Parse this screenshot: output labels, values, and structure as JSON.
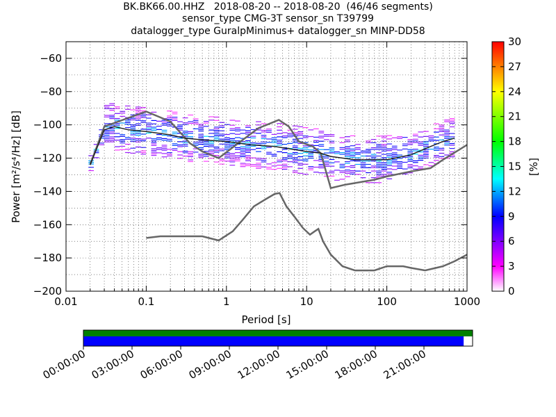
{
  "chart_data": {
    "type": "heatmap",
    "title_lines": [
      "BK.BK66.00.HHZ   2018-08-20 -- 2018-08-20  (46/46 segments)",
      "sensor_type CMG-3T sensor_sn T39799",
      "datalogger_type GuralpMinimus+ datalogger_sn MINP-DD58"
    ],
    "xlabel": "Period [s]",
    "ylabel": "Power [m²/s⁴/Hz] [dB]",
    "x_scale": "log",
    "xlim": [
      0.01,
      1000
    ],
    "ylim": [
      -200,
      -50
    ],
    "x_ticks": [
      {
        "value": 0.01,
        "label": "0.01"
      },
      {
        "value": 0.1,
        "label": "0.1"
      },
      {
        "value": 1,
        "label": "1"
      },
      {
        "value": 10,
        "label": "10"
      },
      {
        "value": 100,
        "label": "100"
      },
      {
        "value": 1000,
        "label": "1000"
      }
    ],
    "y_ticks": [
      -200,
      -180,
      -160,
      -140,
      -120,
      -100,
      -80,
      -60
    ],
    "grid": true,
    "colorbar": {
      "label": "[%]",
      "range": [
        0,
        30
      ],
      "ticks": [
        0,
        3,
        6,
        9,
        12,
        15,
        18,
        21,
        24,
        27,
        30
      ]
    },
    "series": [
      {
        "name": "",
        "color": "#666666",
        "points": [
          [
            0.1,
            -168
          ],
          [
            0.15,
            -167
          ],
          [
            0.3,
            -167
          ],
          [
            0.5,
            -167
          ],
          [
            0.8,
            -169.5
          ],
          [
            1.2,
            -164
          ],
          [
            1.6,
            -157
          ],
          [
            2.2,
            -149
          ],
          [
            3,
            -145
          ],
          [
            4,
            -141.5
          ],
          [
            4.6,
            -141
          ],
          [
            5.6,
            -149
          ],
          [
            7,
            -155
          ],
          [
            9,
            -162
          ],
          [
            11,
            -166
          ],
          [
            12.6,
            -164
          ],
          [
            14,
            -162.5
          ],
          [
            16,
            -170
          ],
          [
            20,
            -178
          ],
          [
            28,
            -185
          ],
          [
            40,
            -187.5
          ],
          [
            70,
            -187.5
          ],
          [
            100,
            -185
          ],
          [
            160,
            -185
          ],
          [
            200,
            -186
          ],
          [
            300,
            -187.5
          ],
          [
            500,
            -185
          ],
          [
            700,
            -182
          ],
          [
            1000,
            -178
          ]
        ]
      },
      {
        "name": "",
        "color": "#666666",
        "points": [
          [
            0.02,
            -124
          ],
          [
            0.03,
            -101
          ],
          [
            0.1,
            -92
          ],
          [
            0.2,
            -98
          ],
          [
            0.35,
            -111
          ],
          [
            0.5,
            -116
          ],
          [
            0.8,
            -120
          ],
          [
            1.5,
            -110
          ],
          [
            2.5,
            -102
          ],
          [
            4.5,
            -97
          ],
          [
            6,
            -101
          ],
          [
            8,
            -110
          ],
          [
            12,
            -113
          ],
          [
            15,
            -117
          ],
          [
            20,
            -138
          ],
          [
            30,
            -136
          ],
          [
            40,
            -135
          ],
          [
            70,
            -133
          ],
          [
            100,
            -131
          ],
          [
            200,
            -128
          ],
          [
            350,
            -126
          ],
          [
            500,
            -121
          ],
          [
            1000,
            -112
          ]
        ]
      },
      {
        "name": "",
        "color": "#222222",
        "points": [
          [
            0.02,
            -124
          ],
          [
            0.03,
            -103
          ],
          [
            0.04,
            -101
          ],
          [
            0.06,
            -103
          ],
          [
            0.1,
            -104
          ],
          [
            0.2,
            -106
          ],
          [
            0.3,
            -108
          ],
          [
            0.5,
            -109
          ],
          [
            1,
            -110
          ],
          [
            2,
            -112
          ],
          [
            4,
            -113
          ],
          [
            10,
            -116
          ],
          [
            15,
            -117
          ],
          [
            20,
            -119
          ],
          [
            40,
            -121
          ],
          [
            70,
            -121
          ],
          [
            100,
            -121
          ],
          [
            200,
            -118
          ],
          [
            350,
            -113
          ],
          [
            500,
            -110
          ],
          [
            700,
            -108
          ]
        ]
      }
    ],
    "segment_timeline": {
      "tick_labels": [
        "00:00:00",
        "03:00:00",
        "06:00:00",
        "09:00:00",
        "12:00:00",
        "15:00:00",
        "18:00:00",
        "21:00:00"
      ],
      "data_coverage_fraction": 0.977,
      "colors": {
        "top": "#008000",
        "coverage": "#0000ff"
      }
    }
  }
}
